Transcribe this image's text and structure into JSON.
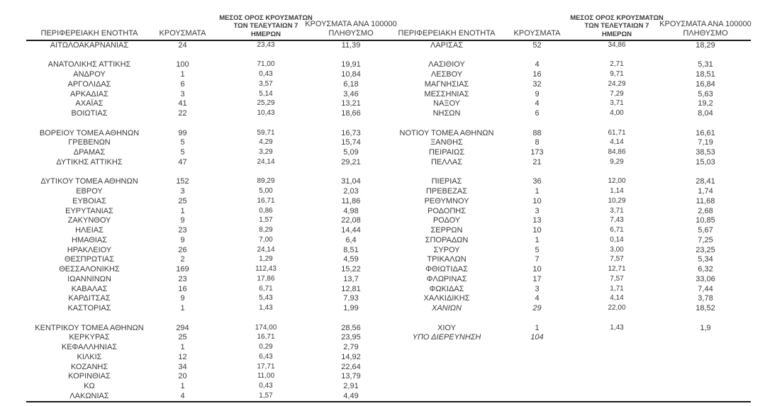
{
  "columns": {
    "region": "ΠΕΡΙΦΕΡΕΙΑΚΗ ΕΝΟΤΗΤΑ",
    "cases": "ΚΡΟΥΣΜΑΤΑ",
    "avg7_lines": [
      "ΜΕΣΟΣ ΟΡΟΣ ΚΡΟΥΣΜΑΤΩΝ",
      "ΤΩΝ ΤΕΛΕΥΤΑΙΩΝ 7",
      "ΗΜΕΡΩΝ"
    ],
    "per100k_lines": [
      "ΚΡΟΥΣΜΑΤΑ ΑΝΑ 100000",
      "ΠΛΗΘΥΣΜΟ"
    ]
  },
  "left_table": {
    "rows": [
      {
        "region": "ΑΙΤΩΛΟΑΚΑΡΝΑΝΙΑΣ",
        "cases": "24",
        "avg7": "23,43",
        "per100k": "11,39"
      },
      {},
      {
        "region": "ΑΝΑΤΟΛΙΚΗΣ ΑΤΤΙΚΗΣ",
        "cases": "100",
        "avg7": "71,00",
        "per100k": "19,91"
      },
      {
        "region": "ΑΝΔΡΟΥ",
        "cases": "1",
        "avg7": "0,43",
        "per100k": "10,84"
      },
      {
        "region": "ΑΡΓΟΛΙΔΑΣ",
        "cases": "6",
        "avg7": "3,57",
        "per100k": "6,18"
      },
      {
        "region": "ΑΡΚΑΔΙΑΣ",
        "cases": "3",
        "avg7": "5,14",
        "per100k": "3,46"
      },
      {
        "region": "ΑΧΑΪΑΣ",
        "cases": "41",
        "avg7": "25,29",
        "per100k": "13,21"
      },
      {
        "region": "ΒΟΙΩΤΙΑΣ",
        "cases": "22",
        "avg7": "10,43",
        "per100k": "18,66"
      },
      {},
      {
        "region": "ΒΟΡΕΙΟΥ ΤΟΜΕΑ ΑΘΗΝΩΝ",
        "cases": "99",
        "avg7": "59,71",
        "per100k": "16,73"
      },
      {
        "region": "ΓΡΕΒΕΝΩΝ",
        "cases": "5",
        "avg7": "4,29",
        "per100k": "15,74"
      },
      {
        "region": "ΔΡΑΜΑΣ",
        "cases": "5",
        "avg7": "3,29",
        "per100k": "5,09"
      },
      {
        "region": "ΔΥΤΙΚΗΣ ΑΤΤΙΚΗΣ",
        "cases": "47",
        "avg7": "24,14",
        "per100k": "29,21"
      },
      {},
      {
        "region": "ΔΥΤΙΚΟΥ ΤΟΜΕΑ ΑΘΗΝΩΝ",
        "cases": "152",
        "avg7": "89,29",
        "per100k": "31,04"
      },
      {
        "region": "ΕΒΡΟΥ",
        "cases": "3",
        "avg7": "5,00",
        "per100k": "2,03"
      },
      {
        "region": "ΕΥΒΟΙΑΣ",
        "cases": "25",
        "avg7": "16,71",
        "per100k": "11,86"
      },
      {
        "region": "ΕΥΡΥΤΑΝΙΑΣ",
        "cases": "1",
        "avg7": "0,86",
        "per100k": "4,98"
      },
      {
        "region": "ΖΑΚΥΝΘΟΥ",
        "cases": "9",
        "avg7": "1,57",
        "per100k": "22,08"
      },
      {
        "region": "ΗΛΕΙΑΣ",
        "cases": "23",
        "avg7": "8,29",
        "per100k": "14,44"
      },
      {
        "region": "ΗΜΑΘΙΑΣ",
        "cases": "9",
        "avg7": "7,00",
        "per100k": "6,4"
      },
      {
        "region": "ΗΡΑΚΛΕΙΟΥ",
        "cases": "26",
        "avg7": "24,14",
        "per100k": "8,51"
      },
      {
        "region": "ΘΕΣΠΡΩΤΙΑΣ",
        "cases": "2",
        "avg7": "1,29",
        "per100k": "4,59"
      },
      {
        "region": "ΘΕΣΣΑΛΟΝΙΚΗΣ",
        "cases": "169",
        "avg7": "112,43",
        "per100k": "15,22"
      },
      {
        "region": "ΙΩΑΝΝΙΝΩΝ",
        "cases": "23",
        "avg7": "17,86",
        "per100k": "13,7"
      },
      {
        "region": "ΚΑΒΑΛΑΣ",
        "cases": "16",
        "avg7": "6,71",
        "per100k": "12,81"
      },
      {
        "region": "ΚΑΡΔΙΤΣΑΣ",
        "cases": "9",
        "avg7": "5,43",
        "per100k": "7,93"
      },
      {
        "region": "ΚΑΣΤΟΡΙΑΣ",
        "cases": "1",
        "avg7": "1,43",
        "per100k": "1,99"
      },
      {},
      {
        "region": "ΚΕΝΤΡΙΚΟΥ ΤΟΜΕΑ ΑΘΗΝΩΝ",
        "cases": "294",
        "avg7": "174,00",
        "per100k": "28,56"
      },
      {
        "region": "ΚΕΡΚΥΡΑΣ",
        "cases": "25",
        "avg7": "16,71",
        "per100k": "23,95"
      },
      {
        "region": "ΚΕΦΑΛΛΗΝΙΑΣ",
        "cases": "1",
        "avg7": "0,29",
        "per100k": "2,79"
      },
      {
        "region": "ΚΙΛΚΙΣ",
        "cases": "12",
        "avg7": "6,43",
        "per100k": "14,92"
      },
      {
        "region": "ΚΟΖΑΝΗΣ",
        "cases": "34",
        "avg7": "17,71",
        "per100k": "22,64"
      },
      {
        "region": "ΚΟΡΙΝΘΙΑΣ",
        "cases": "20",
        "avg7": "11,00",
        "per100k": "13,79"
      },
      {
        "region": "ΚΩ",
        "cases": "1",
        "avg7": "0,43",
        "per100k": "2,91"
      },
      {
        "region": "ΛΑΚΩΝΙΑΣ",
        "cases": "4",
        "avg7": "1,57",
        "per100k": "4,49"
      }
    ]
  },
  "right_table": {
    "rows": [
      {
        "region": "ΛΑΡΙΣΑΣ",
        "cases": "52",
        "avg7": "34,86",
        "per100k": "18,29"
      },
      {},
      {
        "region": "ΛΑΣΙΘΙΟΥ",
        "cases": "4",
        "avg7": "2,71",
        "per100k": "5,31"
      },
      {
        "region": "ΛΕΣΒΟΥ",
        "cases": "16",
        "avg7": "9,71",
        "per100k": "18,51"
      },
      {
        "region": "ΜΑΓΝΗΣΙΑΣ",
        "cases": "32",
        "avg7": "24,29",
        "per100k": "16,84"
      },
      {
        "region": "ΜΕΣΣΗΝΙΑΣ",
        "cases": "9",
        "avg7": "7,29",
        "per100k": "5,63"
      },
      {
        "region": "ΝΑΞΟΥ",
        "cases": "4",
        "avg7": "3,71",
        "per100k": "19,2"
      },
      {
        "region": "ΝΗΣΩΝ",
        "cases": "6",
        "avg7": "4,00",
        "per100k": "8,04"
      },
      {},
      {
        "region": "ΝΟΤΙΟΥ ΤΟΜΕΑ ΑΘΗΝΩΝ",
        "cases": "88",
        "avg7": "61,71",
        "per100k": "16,61"
      },
      {
        "region": "ΞΑΝΘΗΣ",
        "cases": "8",
        "avg7": "4,14",
        "per100k": "7,19"
      },
      {
        "region": "ΠΕΙΡΑΙΩΣ",
        "cases": "173",
        "avg7": "84,86",
        "per100k": "38,53"
      },
      {
        "region": "ΠΕΛΛΑΣ",
        "cases": "21",
        "avg7": "9,29",
        "per100k": "15,03"
      },
      {},
      {
        "region": "ΠΙΕΡΙΑΣ",
        "cases": "36",
        "avg7": "12,00",
        "per100k": "28,41"
      },
      {
        "region": "ΠΡΕΒΕΖΑΣ",
        "cases": "1",
        "avg7": "1,14",
        "per100k": "1,74"
      },
      {
        "region": "ΡΕΘΥΜΝΟΥ",
        "cases": "10",
        "avg7": "10,29",
        "per100k": "11,68"
      },
      {
        "region": "ΡΟΔΟΠΗΣ",
        "cases": "3",
        "avg7": "3,71",
        "per100k": "2,68"
      },
      {
        "region": "ΡΟΔΟΥ",
        "cases": "13",
        "avg7": "7,43",
        "per100k": "10,85"
      },
      {
        "region": "ΣΕΡΡΩΝ",
        "cases": "10",
        "avg7": "6,71",
        "per100k": "5,67"
      },
      {
        "region": "ΣΠΟΡΑΔΩΝ",
        "cases": "1",
        "avg7": "0,14",
        "per100k": "7,25"
      },
      {
        "region": "ΣΥΡΟΥ",
        "cases": "5",
        "avg7": "3,00",
        "per100k": "23,25"
      },
      {
        "region": "ΤΡΙΚΑΛΩΝ",
        "cases": "7",
        "avg7": "7,57",
        "per100k": "5,34"
      },
      {
        "region": "ΦΘΙΩΤΙΔΑΣ",
        "cases": "10",
        "avg7": "12,71",
        "per100k": "6,32"
      },
      {
        "region": "ΦΛΩΡΙΝΑΣ",
        "cases": "17",
        "avg7": "7,57",
        "per100k": "33,06"
      },
      {
        "region": "ΦΩΚΙΔΑΣ",
        "cases": "3",
        "avg7": "1,71",
        "per100k": "7,44"
      },
      {
        "region": "ΧΑΛΚΙΔΙΚΗΣ",
        "cases": "4",
        "avg7": "4,14",
        "per100k": "3,78"
      },
      {
        "region": "ΧΑΝΙΩΝ",
        "cases": "29",
        "avg7": "22,00",
        "per100k": "18,52",
        "italic": true
      },
      {},
      {
        "region": "ΧΙΟΥ",
        "cases": "1",
        "avg7": "1,43",
        "per100k": "1,9"
      },
      {
        "region": "ΥΠΟ ΔΙΕΡΕΥΝΗΣΗ",
        "cases": "104",
        "avg7": "",
        "per100k": "",
        "italic": true
      }
    ]
  }
}
